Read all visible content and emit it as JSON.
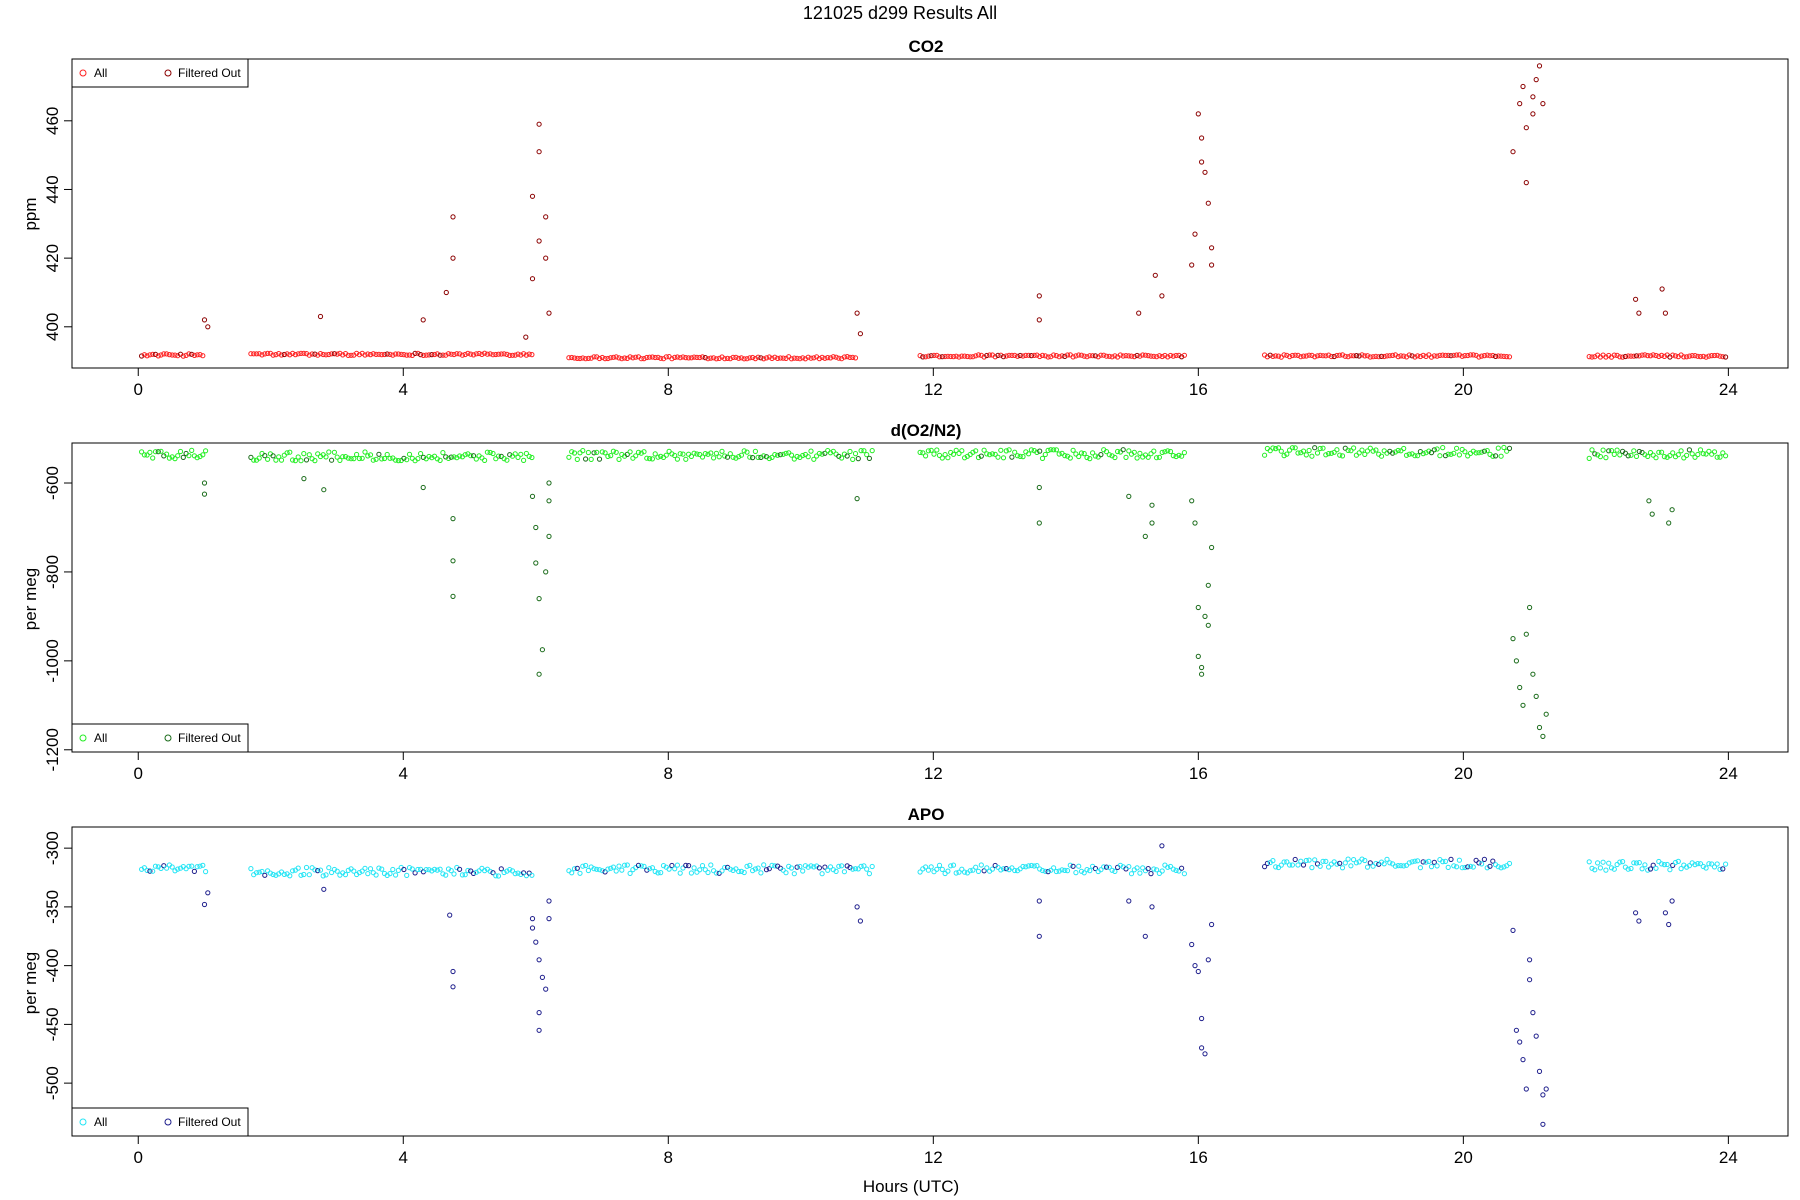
{
  "figure": {
    "title": "121025   d299   Results All",
    "xlabel": "Hours (UTC)"
  },
  "chart_data": [
    {
      "type": "scatter",
      "title": "CO2",
      "ylabel": "ppm",
      "xlim": [
        -1,
        24.9
      ],
      "ylim": [
        388,
        478
      ],
      "xticks": [
        0,
        4,
        8,
        12,
        16,
        20,
        24
      ],
      "yticks": [
        400,
        420,
        440,
        460
      ],
      "legend": {
        "position": "top-left",
        "entries": [
          "All",
          "Filtered Out"
        ]
      },
      "colors": {
        "all": "#ff2020",
        "filtered": "#8b0000"
      },
      "baseline": [
        [
          0.05,
          1.0,
          391.8
        ],
        [
          1.7,
          5.95,
          392
        ],
        [
          6.5,
          10.85,
          391
        ],
        [
          11.8,
          15.8,
          391.5
        ],
        [
          17.0,
          20.7,
          391.5
        ],
        [
          21.9,
          24.0,
          391.5
        ]
      ],
      "spikes": [
        [
          1.0,
          402
        ],
        [
          1.05,
          400
        ],
        [
          2.75,
          403
        ],
        [
          4.3,
          402
        ],
        [
          4.65,
          410
        ],
        [
          4.75,
          420
        ],
        [
          4.75,
          432
        ],
        [
          5.85,
          397
        ],
        [
          5.95,
          438
        ],
        [
          5.95,
          414
        ],
        [
          6.05,
          459
        ],
        [
          6.05,
          451
        ],
        [
          6.05,
          425
        ],
        [
          6.15,
          432
        ],
        [
          6.15,
          420
        ],
        [
          6.2,
          404
        ],
        [
          10.85,
          404
        ],
        [
          10.9,
          398
        ],
        [
          13.6,
          409
        ],
        [
          13.6,
          402
        ],
        [
          15.1,
          404
        ],
        [
          15.35,
          415
        ],
        [
          15.45,
          409
        ],
        [
          15.9,
          418
        ],
        [
          15.95,
          427
        ],
        [
          16.0,
          462
        ],
        [
          16.05,
          455
        ],
        [
          16.05,
          448
        ],
        [
          16.1,
          445
        ],
        [
          16.15,
          436
        ],
        [
          16.2,
          423
        ],
        [
          16.2,
          418
        ],
        [
          20.75,
          451
        ],
        [
          20.85,
          465
        ],
        [
          20.9,
          470
        ],
        [
          20.95,
          442
        ],
        [
          20.95,
          458
        ],
        [
          21.05,
          462
        ],
        [
          21.05,
          467
        ],
        [
          21.1,
          472
        ],
        [
          21.15,
          476
        ],
        [
          21.2,
          465
        ],
        [
          22.6,
          408
        ],
        [
          22.65,
          404
        ],
        [
          23.0,
          411
        ],
        [
          23.05,
          404
        ]
      ]
    },
    {
      "type": "scatter",
      "title": "d(O2/N2)",
      "ylabel": "per meg",
      "xlim": [
        -1,
        24.9
      ],
      "ylim": [
        -1205,
        -510
      ],
      "xticks": [
        0,
        4,
        8,
        12,
        16,
        20,
        24
      ],
      "yticks": [
        -1200,
        -1000,
        -800,
        -600
      ],
      "legend": {
        "position": "bottom-left",
        "entries": [
          "All",
          "Filtered Out"
        ]
      },
      "colors": {
        "all": "#22ee22",
        "filtered": "#1a6b1a"
      },
      "baseline": [
        [
          0.05,
          1.05,
          -535
        ],
        [
          1.7,
          5.95,
          -540
        ],
        [
          6.5,
          11.1,
          -537
        ],
        [
          11.8,
          15.8,
          -535
        ],
        [
          17.0,
          20.7,
          -530
        ],
        [
          21.9,
          24.0,
          -535
        ]
      ],
      "spikes": [
        [
          1.0,
          -600
        ],
        [
          1.0,
          -625
        ],
        [
          2.5,
          -590
        ],
        [
          2.8,
          -615
        ],
        [
          4.3,
          -610
        ],
        [
          4.75,
          -680
        ],
        [
          4.75,
          -775
        ],
        [
          4.75,
          -855
        ],
        [
          5.95,
          -630
        ],
        [
          6.0,
          -700
        ],
        [
          6.0,
          -780
        ],
        [
          6.05,
          -860
        ],
        [
          6.05,
          -1030
        ],
        [
          6.1,
          -975
        ],
        [
          6.15,
          -800
        ],
        [
          6.2,
          -720
        ],
        [
          6.2,
          -640
        ],
        [
          6.2,
          -600
        ],
        [
          10.85,
          -635
        ],
        [
          13.6,
          -610
        ],
        [
          13.6,
          -690
        ],
        [
          14.95,
          -630
        ],
        [
          15.2,
          -720
        ],
        [
          15.3,
          -690
        ],
        [
          15.3,
          -650
        ],
        [
          15.9,
          -640
        ],
        [
          15.95,
          -690
        ],
        [
          16.0,
          -880
        ],
        [
          16.0,
          -990
        ],
        [
          16.05,
          -1015
        ],
        [
          16.05,
          -1030
        ],
        [
          16.1,
          -900
        ],
        [
          16.15,
          -920
        ],
        [
          16.15,
          -830
        ],
        [
          16.2,
          -745
        ],
        [
          20.75,
          -950
        ],
        [
          20.8,
          -1000
        ],
        [
          20.85,
          -1060
        ],
        [
          20.9,
          -1100
        ],
        [
          20.95,
          -940
        ],
        [
          21.0,
          -880
        ],
        [
          21.05,
          -1030
        ],
        [
          21.1,
          -1080
        ],
        [
          21.15,
          -1150
        ],
        [
          21.2,
          -1170
        ],
        [
          21.25,
          -1120
        ],
        [
          22.8,
          -640
        ],
        [
          22.85,
          -670
        ],
        [
          23.1,
          -690
        ],
        [
          23.15,
          -660
        ]
      ]
    },
    {
      "type": "scatter",
      "title": "APO",
      "ylabel": "per meg",
      "xlim": [
        -1,
        24.9
      ],
      "ylim": [
        -545,
        -282
      ],
      "xticks": [
        0,
        4,
        8,
        12,
        16,
        20,
        24
      ],
      "yticks": [
        -500,
        -450,
        -400,
        -350,
        -300
      ],
      "legend": {
        "position": "bottom-left",
        "entries": [
          "All",
          "Filtered Out"
        ]
      },
      "colors": {
        "all": "#22e5f5",
        "filtered": "#1e1e8c"
      },
      "baseline": [
        [
          0.05,
          1.05,
          -318
        ],
        [
          1.7,
          5.95,
          -320
        ],
        [
          6.5,
          11.1,
          -318
        ],
        [
          11.8,
          15.8,
          -318
        ],
        [
          17.0,
          20.7,
          -313
        ],
        [
          21.9,
          24.0,
          -315
        ]
      ],
      "spikes": [
        [
          1.0,
          -348
        ],
        [
          1.05,
          -338
        ],
        [
          2.8,
          -335
        ],
        [
          4.7,
          -357
        ],
        [
          4.75,
          -405
        ],
        [
          4.75,
          -418
        ],
        [
          5.95,
          -360
        ],
        [
          5.95,
          -368
        ],
        [
          6.0,
          -380
        ],
        [
          6.05,
          -395
        ],
        [
          6.05,
          -440
        ],
        [
          6.05,
          -455
        ],
        [
          6.1,
          -410
        ],
        [
          6.15,
          -420
        ],
        [
          6.2,
          -345
        ],
        [
          6.2,
          -360
        ],
        [
          10.85,
          -350
        ],
        [
          10.9,
          -362
        ],
        [
          13.6,
          -345
        ],
        [
          13.6,
          -375
        ],
        [
          14.95,
          -345
        ],
        [
          15.2,
          -375
        ],
        [
          15.3,
          -350
        ],
        [
          15.45,
          -298
        ],
        [
          15.9,
          -382
        ],
        [
          15.95,
          -400
        ],
        [
          16.0,
          -405
        ],
        [
          16.05,
          -445
        ],
        [
          16.05,
          -470
        ],
        [
          16.1,
          -475
        ],
        [
          16.15,
          -395
        ],
        [
          16.2,
          -365
        ],
        [
          20.75,
          -370
        ],
        [
          20.8,
          -455
        ],
        [
          20.85,
          -465
        ],
        [
          20.9,
          -480
        ],
        [
          20.95,
          -505
        ],
        [
          21.0,
          -395
        ],
        [
          21.0,
          -412
        ],
        [
          21.05,
          -440
        ],
        [
          21.1,
          -460
        ],
        [
          21.15,
          -490
        ],
        [
          21.2,
          -510
        ],
        [
          21.25,
          -505
        ],
        [
          21.2,
          -535
        ],
        [
          22.6,
          -355
        ],
        [
          22.65,
          -362
        ],
        [
          23.05,
          -355
        ],
        [
          23.1,
          -365
        ],
        [
          23.15,
          -345
        ]
      ]
    }
  ]
}
